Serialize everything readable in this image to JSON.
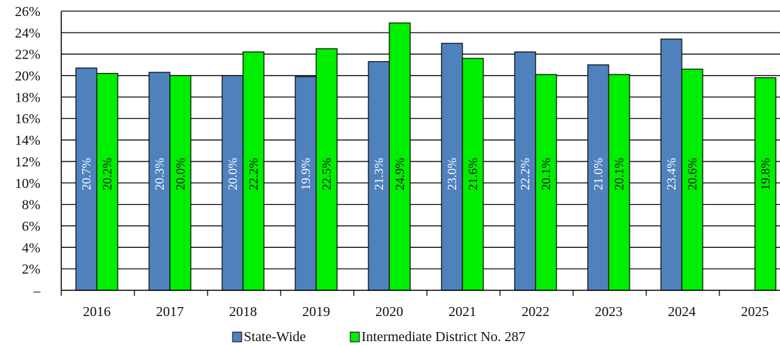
{
  "chart_data": {
    "type": "bar",
    "categories": [
      "2016",
      "2017",
      "2018",
      "2019",
      "2020",
      "2021",
      "2022",
      "2023",
      "2024",
      "2025"
    ],
    "series": [
      {
        "name": "State-Wide",
        "color": "#4f81bd",
        "label_color": "#ffffff",
        "values": [
          20.7,
          20.3,
          20.0,
          19.9,
          21.3,
          23.0,
          22.2,
          21.0,
          23.4,
          null
        ],
        "labels": [
          "20.7%",
          "20.3%",
          "20.0%",
          "19.9%",
          "21.3%",
          "23.0%",
          "22.2%",
          "21.0%",
          "23.4%",
          null
        ]
      },
      {
        "name": "Intermediate District No. 287",
        "color": "#00ee00",
        "label_color": "#111111",
        "values": [
          20.2,
          20.0,
          22.2,
          22.5,
          24.9,
          21.6,
          20.1,
          20.1,
          20.6,
          19.8
        ],
        "labels": [
          "20.2%",
          "20.0%",
          "22.2%",
          "22.5%",
          "24.9%",
          "21.6%",
          "20.1%",
          "20.1%",
          "20.6%",
          "19.8%"
        ]
      }
    ],
    "ylim": [
      0,
      26
    ],
    "yticks": [
      0,
      2,
      4,
      6,
      8,
      10,
      12,
      14,
      16,
      18,
      20,
      22,
      24,
      26
    ],
    "ytick_labels": [
      "–",
      "2%",
      "4%",
      "6%",
      "8%",
      "10%",
      "12%",
      "14%",
      "16%",
      "18%",
      "20%",
      "22%",
      "24%",
      "26%"
    ],
    "grid": true,
    "legend_position": "bottom"
  }
}
